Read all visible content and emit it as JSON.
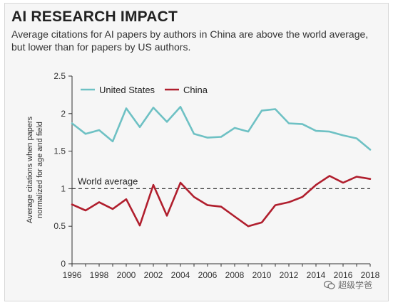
{
  "header": {
    "title": "AI RESEARCH IMPACT",
    "subtitle": "Average citations for AI papers by authors in China are above the world average, but lower than for papers by US authors."
  },
  "watermark": {
    "icon": "wechat-icon",
    "text": "超级学爸"
  },
  "colors": {
    "us": "#6ec1c4",
    "china": "#b01e2d",
    "text": "#222222",
    "axis": "#333333"
  },
  "chart_data": {
    "type": "line",
    "ylabel": "Average citations when papers normalized for age and field",
    "xlabel": "",
    "ylim": [
      0,
      2.5
    ],
    "xlim": [
      1996,
      2018
    ],
    "yticks": [
      "0",
      "0.5",
      "1",
      "1.5",
      "2",
      "2.5"
    ],
    "ytick_values": [
      0,
      0.5,
      1,
      1.5,
      2,
      2.5
    ],
    "xticks": [
      "1996",
      "1998",
      "2000",
      "2002",
      "2004",
      "2006",
      "2008",
      "2010",
      "2012",
      "2014",
      "2016",
      "2018"
    ],
    "xtick_values": [
      1996,
      1998,
      2000,
      2002,
      2004,
      2006,
      2008,
      2010,
      2012,
      2014,
      2016,
      2018
    ],
    "x": [
      1996,
      1997,
      1998,
      1999,
      2000,
      2001,
      2002,
      2003,
      2004,
      2005,
      2006,
      2007,
      2008,
      2009,
      2010,
      2011,
      2012,
      2013,
      2014,
      2015,
      2016,
      2017,
      2018
    ],
    "series": [
      {
        "name": "United States",
        "color": "#6ec1c4",
        "values": [
          1.87,
          1.73,
          1.78,
          1.63,
          2.07,
          1.82,
          2.08,
          1.89,
          2.09,
          1.73,
          1.68,
          1.69,
          1.81,
          1.76,
          2.04,
          2.06,
          1.87,
          1.86,
          1.77,
          1.76,
          1.71,
          1.67,
          1.52
        ]
      },
      {
        "name": "China",
        "color": "#b01e2d",
        "values": [
          0.79,
          0.71,
          0.82,
          0.73,
          0.86,
          0.51,
          1.05,
          0.64,
          1.08,
          0.89,
          0.78,
          0.76,
          0.63,
          0.5,
          0.55,
          0.78,
          0.82,
          0.89,
          1.05,
          1.17,
          1.08,
          1.16,
          1.13
        ]
      }
    ],
    "reference_line": {
      "label": "World average",
      "value": 1
    },
    "legend_position": "top-left",
    "grid": false
  }
}
